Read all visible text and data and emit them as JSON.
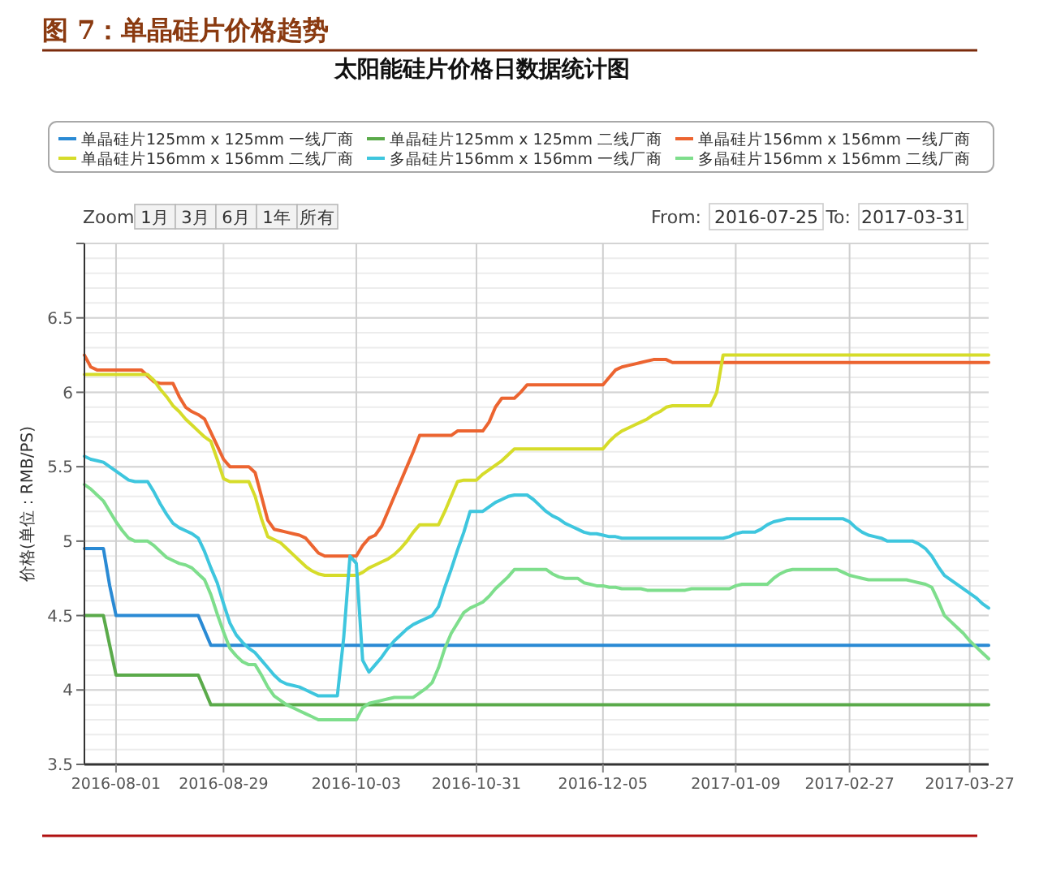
{
  "chart_data": {
    "type": "line",
    "title": "图 7：单晶硅片价格趋势",
    "subtitle": "太阳能硅片价格日数据统计图",
    "ylabel": "价格(单位：RMB/PS)",
    "annotations": [
      "Zoom",
      "1月",
      "3月",
      "6月",
      "1年",
      "所有",
      "From:",
      "2016-07-25",
      "To:",
      "2017-03-31"
    ],
    "legend": "top",
    "grid": true,
    "ylim": [
      3.5,
      7
    ],
    "yticks": [
      3.5,
      4,
      4.5,
      5,
      5.5,
      6,
      6.5,
      {
        "value": 7,
        "label": null
      }
    ],
    "categories": [
      null,
      null,
      null,
      null,
      null,
      "2016-08-01",
      null,
      null,
      null,
      null,
      null,
      null,
      null,
      null,
      null,
      null,
      null,
      null,
      null,
      null,
      null,
      null,
      "2016-08-29",
      null,
      null,
      null,
      null,
      null,
      null,
      null,
      null,
      null,
      null,
      null,
      null,
      null,
      null,
      null,
      null,
      null,
      null,
      null,
      null,
      "2016-10-03",
      null,
      null,
      null,
      null,
      null,
      null,
      null,
      null,
      null,
      null,
      null,
      null,
      null,
      null,
      null,
      null,
      null,
      null,
      "2016-10-31",
      null,
      null,
      null,
      null,
      null,
      null,
      null,
      null,
      null,
      null,
      null,
      null,
      null,
      null,
      null,
      null,
      null,
      null,
      null,
      "2016-12-05",
      null,
      null,
      null,
      null,
      null,
      null,
      null,
      null,
      null,
      null,
      null,
      null,
      null,
      null,
      null,
      null,
      null,
      null,
      null,
      null,
      "2017-01-09",
      null,
      null,
      null,
      null,
      null,
      null,
      null,
      null,
      null,
      null,
      null,
      null,
      null,
      null,
      null,
      null,
      null,
      "2017-02-27",
      null,
      null,
      null,
      null,
      null,
      null,
      null,
      null,
      null,
      null,
      null,
      null,
      null,
      null,
      null,
      null,
      null,
      null,
      "2017-03-27",
      null,
      null,
      null
    ],
    "series": [
      {
        "name": "单晶硅片125mm x 125mm 一线厂商",
        "color": "#2a8ad4",
        "values": [
          4.95,
          4.95,
          4.95,
          4.95,
          4.7,
          4.5,
          4.5,
          4.5,
          4.5,
          4.5,
          4.5,
          4.5,
          4.5,
          4.5,
          4.5,
          4.5,
          4.5,
          4.5,
          4.5,
          4.4,
          4.3,
          4.3,
          4.3,
          4.3,
          4.3,
          4.3,
          4.3,
          4.3,
          4.3,
          4.3,
          4.3,
          4.3,
          4.3,
          4.3,
          4.3,
          4.3,
          4.3,
          4.3,
          4.3,
          4.3,
          4.3,
          4.3,
          4.3,
          4.3,
          4.3,
          4.3,
          4.3,
          4.3,
          4.3,
          4.3,
          4.3,
          4.3,
          4.3,
          4.3,
          4.3,
          4.3,
          4.3,
          4.3,
          4.3,
          4.3,
          4.3,
          4.3,
          4.3,
          4.3,
          4.3,
          4.3,
          4.3,
          4.3,
          4.3,
          4.3,
          4.3,
          4.3,
          4.3,
          4.3,
          4.3,
          4.3,
          4.3,
          4.3,
          4.3,
          4.3,
          4.3,
          4.3,
          4.3,
          4.3,
          4.3,
          4.3,
          4.3,
          4.3,
          4.3,
          4.3,
          4.3,
          4.3,
          4.3,
          4.3,
          4.3,
          4.3,
          4.3,
          4.3,
          4.3,
          4.3,
          4.3,
          4.3,
          4.3,
          4.3,
          4.3,
          4.3,
          4.3,
          4.3,
          4.3,
          4.3,
          4.3,
          4.3,
          4.3,
          4.3,
          4.3,
          4.3,
          4.3,
          4.3,
          4.3,
          4.3,
          4.3,
          4.3,
          4.3,
          4.3,
          4.3,
          4.3,
          4.3,
          4.3,
          4.3,
          4.3,
          4.3,
          4.3,
          4.3,
          4.3,
          4.3,
          4.3,
          4.3,
          4.3,
          4.3,
          4.3,
          4.3,
          4.3,
          4.3,
          4.3
        ]
      },
      {
        "name": "单晶硅片125mm x 125mm 二线厂商",
        "color": "#5aaa4a",
        "values": [
          4.5,
          4.5,
          4.5,
          4.5,
          4.3,
          4.1,
          4.1,
          4.1,
          4.1,
          4.1,
          4.1,
          4.1,
          4.1,
          4.1,
          4.1,
          4.1,
          4.1,
          4.1,
          4.1,
          4.0,
          3.9,
          3.9,
          3.9,
          3.9,
          3.9,
          3.9,
          3.9,
          3.9,
          3.9,
          3.9,
          3.9,
          3.9,
          3.9,
          3.9,
          3.9,
          3.9,
          3.9,
          3.9,
          3.9,
          3.9,
          3.9,
          3.9,
          3.9,
          3.9,
          3.9,
          3.9,
          3.9,
          3.9,
          3.9,
          3.9,
          3.9,
          3.9,
          3.9,
          3.9,
          3.9,
          3.9,
          3.9,
          3.9,
          3.9,
          3.9,
          3.9,
          3.9,
          3.9,
          3.9,
          3.9,
          3.9,
          3.9,
          3.9,
          3.9,
          3.9,
          3.9,
          3.9,
          3.9,
          3.9,
          3.9,
          3.9,
          3.9,
          3.9,
          3.9,
          3.9,
          3.9,
          3.9,
          3.9,
          3.9,
          3.9,
          3.9,
          3.9,
          3.9,
          3.9,
          3.9,
          3.9,
          3.9,
          3.9,
          3.9,
          3.9,
          3.9,
          3.9,
          3.9,
          3.9,
          3.9,
          3.9,
          3.9,
          3.9,
          3.9,
          3.9,
          3.9,
          3.9,
          3.9,
          3.9,
          3.9,
          3.9,
          3.9,
          3.9,
          3.9,
          3.9,
          3.9,
          3.9,
          3.9,
          3.9,
          3.9,
          3.9,
          3.9,
          3.9,
          3.9,
          3.9,
          3.9,
          3.9,
          3.9,
          3.9,
          3.9,
          3.9,
          3.9,
          3.9,
          3.9,
          3.9,
          3.9,
          3.9,
          3.9,
          3.9,
          3.9,
          3.9,
          3.9,
          3.9,
          3.9
        ]
      },
      {
        "name": "单晶硅片156mm x 156mm 一线厂商",
        "color": "#ec6430",
        "values": [
          6.25,
          6.17,
          6.15,
          6.15,
          6.15,
          6.15,
          6.15,
          6.15,
          6.15,
          6.15,
          6.11,
          6.07,
          6.06,
          6.06,
          6.06,
          5.97,
          5.9,
          5.87,
          5.85,
          5.82,
          5.73,
          5.64,
          5.55,
          5.5,
          5.5,
          5.5,
          5.5,
          5.46,
          5.3,
          5.14,
          5.08,
          5.07,
          5.06,
          5.05,
          5.04,
          5.02,
          4.97,
          4.92,
          4.9,
          4.9,
          4.9,
          4.9,
          4.9,
          4.9,
          4.97,
          5.02,
          5.04,
          5.1,
          5.2,
          5.3,
          5.4,
          5.5,
          5.6,
          5.71,
          5.71,
          5.71,
          5.71,
          5.71,
          5.71,
          5.74,
          5.74,
          5.74,
          5.74,
          5.74,
          5.8,
          5.9,
          5.96,
          5.96,
          5.96,
          6.0,
          6.05,
          6.05,
          6.05,
          6.05,
          6.05,
          6.05,
          6.05,
          6.05,
          6.05,
          6.05,
          6.05,
          6.05,
          6.05,
          6.1,
          6.15,
          6.17,
          6.18,
          6.19,
          6.2,
          6.21,
          6.22,
          6.22,
          6.22,
          6.2,
          6.2,
          6.2,
          6.2,
          6.2,
          6.2,
          6.2,
          6.2,
          6.2,
          6.2,
          6.2,
          6.2,
          6.2,
          6.2,
          6.2,
          6.2,
          6.2,
          6.2,
          6.2,
          6.2,
          6.2,
          6.2,
          6.2,
          6.2,
          6.2,
          6.2,
          6.2,
          6.2,
          6.2,
          6.2,
          6.2,
          6.2,
          6.2,
          6.2,
          6.2,
          6.2,
          6.2,
          6.2,
          6.2,
          6.2,
          6.2,
          6.2,
          6.2,
          6.2,
          6.2,
          6.2,
          6.2,
          6.2,
          6.2,
          6.2,
          6.2
        ]
      },
      {
        "name": "单晶硅片156mm x 156mm 二线厂商",
        "color": "#d6dc2a",
        "values": [
          6.12,
          6.12,
          6.12,
          6.12,
          6.12,
          6.12,
          6.12,
          6.12,
          6.12,
          6.12,
          6.12,
          6.08,
          6.02,
          5.97,
          5.91,
          5.87,
          5.82,
          5.78,
          5.74,
          5.7,
          5.67,
          5.55,
          5.42,
          5.4,
          5.4,
          5.4,
          5.4,
          5.3,
          5.15,
          5.03,
          5.01,
          4.99,
          4.95,
          4.91,
          4.87,
          4.83,
          4.8,
          4.78,
          4.77,
          4.77,
          4.77,
          4.77,
          4.77,
          4.77,
          4.79,
          4.82,
          4.84,
          4.86,
          4.88,
          4.91,
          4.95,
          5.0,
          5.06,
          5.11,
          5.11,
          5.11,
          5.11,
          5.2,
          5.3,
          5.4,
          5.41,
          5.41,
          5.41,
          5.45,
          5.48,
          5.51,
          5.54,
          5.58,
          5.62,
          5.62,
          5.62,
          5.62,
          5.62,
          5.62,
          5.62,
          5.62,
          5.62,
          5.62,
          5.62,
          5.62,
          5.62,
          5.62,
          5.62,
          5.67,
          5.71,
          5.74,
          5.76,
          5.78,
          5.8,
          5.82,
          5.85,
          5.87,
          5.9,
          5.91,
          5.91,
          5.91,
          5.91,
          5.91,
          5.91,
          5.91,
          6.0,
          6.25,
          6.25,
          6.25,
          6.25,
          6.25,
          6.25,
          6.25,
          6.25,
          6.25,
          6.25,
          6.25,
          6.25,
          6.25,
          6.25,
          6.25,
          6.25,
          6.25,
          6.25,
          6.25,
          6.25,
          6.25,
          6.25,
          6.25,
          6.25,
          6.25,
          6.25,
          6.25,
          6.25,
          6.25,
          6.25,
          6.25,
          6.25,
          6.25,
          6.25,
          6.25,
          6.25,
          6.25,
          6.25,
          6.25,
          6.25,
          6.25,
          6.25,
          6.25
        ]
      },
      {
        "name": "多晶硅片156mm x 156mm 一线厂商",
        "color": "#3ec6de",
        "values": [
          5.57,
          5.55,
          5.54,
          5.53,
          5.5,
          5.47,
          5.44,
          5.41,
          5.4,
          5.4,
          5.4,
          5.33,
          5.25,
          5.18,
          5.12,
          5.09,
          5.07,
          5.05,
          5.02,
          4.93,
          4.82,
          4.72,
          4.58,
          4.45,
          4.37,
          4.32,
          4.28,
          4.25,
          4.2,
          4.15,
          4.1,
          4.06,
          4.04,
          4.03,
          4.02,
          4.0,
          3.98,
          3.96,
          3.96,
          3.96,
          3.96,
          4.35,
          4.9,
          4.85,
          4.2,
          4.12,
          4.17,
          4.22,
          4.28,
          4.33,
          4.37,
          4.41,
          4.44,
          4.46,
          4.48,
          4.5,
          4.56,
          4.69,
          4.81,
          4.94,
          5.06,
          5.2,
          5.2,
          5.2,
          5.23,
          5.26,
          5.28,
          5.3,
          5.31,
          5.31,
          5.31,
          5.28,
          5.24,
          5.2,
          5.17,
          5.15,
          5.12,
          5.1,
          5.08,
          5.06,
          5.05,
          5.05,
          5.04,
          5.03,
          5.03,
          5.02,
          5.02,
          5.02,
          5.02,
          5.02,
          5.02,
          5.02,
          5.02,
          5.02,
          5.02,
          5.02,
          5.02,
          5.02,
          5.02,
          5.02,
          5.02,
          5.02,
          5.03,
          5.05,
          5.06,
          5.06,
          5.06,
          5.08,
          5.11,
          5.13,
          5.14,
          5.15,
          5.15,
          5.15,
          5.15,
          5.15,
          5.15,
          5.15,
          5.15,
          5.15,
          5.15,
          5.13,
          5.09,
          5.06,
          5.04,
          5.03,
          5.02,
          5.0,
          5.0,
          5.0,
          5.0,
          5.0,
          4.98,
          4.95,
          4.9,
          4.83,
          4.77,
          4.74,
          4.71,
          4.68,
          4.65,
          4.62,
          4.58,
          4.55
        ]
      },
      {
        "name": "多晶硅片156mm x 156mm 二线厂商",
        "color": "#7ede8c",
        "values": [
          5.38,
          5.35,
          5.31,
          5.27,
          5.2,
          5.13,
          5.07,
          5.02,
          5.0,
          5.0,
          5.0,
          4.97,
          4.93,
          4.89,
          4.87,
          4.85,
          4.84,
          4.82,
          4.78,
          4.74,
          4.64,
          4.51,
          4.39,
          4.28,
          4.23,
          4.19,
          4.17,
          4.17,
          4.1,
          4.02,
          3.96,
          3.93,
          3.9,
          3.88,
          3.86,
          3.84,
          3.82,
          3.8,
          3.8,
          3.8,
          3.8,
          3.8,
          3.8,
          3.8,
          3.88,
          3.91,
          3.92,
          3.93,
          3.94,
          3.95,
          3.95,
          3.95,
          3.95,
          3.98,
          4.01,
          4.05,
          4.15,
          4.28,
          4.38,
          4.45,
          4.52,
          4.55,
          4.57,
          4.59,
          4.63,
          4.68,
          4.72,
          4.76,
          4.81,
          4.81,
          4.81,
          4.81,
          4.81,
          4.81,
          4.78,
          4.76,
          4.75,
          4.75,
          4.75,
          4.72,
          4.71,
          4.7,
          4.7,
          4.69,
          4.69,
          4.68,
          4.68,
          4.68,
          4.68,
          4.67,
          4.67,
          4.67,
          4.67,
          4.67,
          4.67,
          4.67,
          4.68,
          4.68,
          4.68,
          4.68,
          4.68,
          4.68,
          4.68,
          4.7,
          4.71,
          4.71,
          4.71,
          4.71,
          4.71,
          4.75,
          4.78,
          4.8,
          4.81,
          4.81,
          4.81,
          4.81,
          4.81,
          4.81,
          4.81,
          4.81,
          4.79,
          4.77,
          4.76,
          4.75,
          4.74,
          4.74,
          4.74,
          4.74,
          4.74,
          4.74,
          4.74,
          4.73,
          4.72,
          4.71,
          4.69,
          4.6,
          4.5,
          4.46,
          4.42,
          4.38,
          4.33,
          4.29,
          4.25,
          4.21
        ]
      }
    ]
  }
}
